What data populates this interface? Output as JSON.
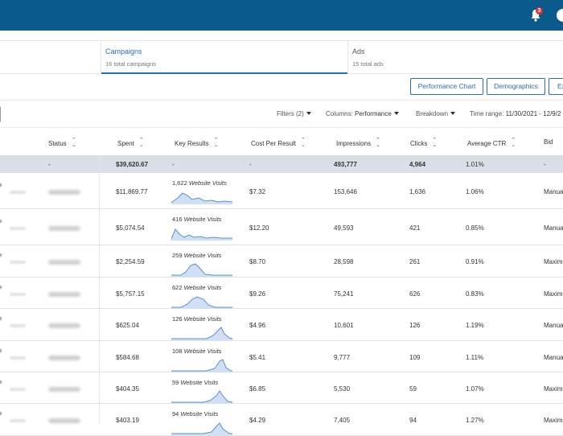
{
  "header": {
    "notification_count": "3",
    "brand_color": "#0b5a8c"
  },
  "tabs": [
    {
      "title": "Campaigns",
      "subtitle": "16 total campaigns"
    },
    {
      "title": "Ads",
      "subtitle": "15 total ads"
    }
  ],
  "actions": {
    "performance_chart": "Performance Chart",
    "demographics": "Demographics",
    "export": "Ex"
  },
  "filters": {
    "filters_label": "Filters (2)",
    "columns_label": "Columns:",
    "columns_value": "Performance",
    "breakdown_label": "Breakdown",
    "time_range_label": "Time range:",
    "time_range_value": "11/30/2021 - 12/9/2"
  },
  "table": {
    "headers": {
      "status": "Status",
      "spent": "Spent",
      "key_results": "Key Results",
      "cost_per_result": "Cost Per Result",
      "impressions": "Impressions",
      "clicks": "Clicks",
      "avg_ctr": "Average CTR",
      "bid": "Bid"
    },
    "summary": {
      "status": "-",
      "spent": "$39,620.67",
      "key_results": "-",
      "cost_per_result": "-",
      "impressions": "493,777",
      "clicks": "4,964",
      "avg_ctr": "1.01%",
      "bid": "-"
    },
    "rows": [
      {
        "spent": "$11,869.77",
        "kr_count": "1,622",
        "kr_label": "Website Visits",
        "cpr": "$7.32",
        "impressions": "153,646",
        "clicks": "1,636",
        "ctr": "1.06%",
        "bid": "Manua"
      },
      {
        "spent": "$5,074.54",
        "kr_count": "416",
        "kr_label": "Website Visits",
        "cpr": "$12.20",
        "impressions": "49,593",
        "clicks": "421",
        "ctr": "0.85%",
        "bid": "Manua"
      },
      {
        "spent": "$2,254.59",
        "kr_count": "259",
        "kr_label": "Website Visits",
        "cpr": "$8.70",
        "impressions": "28,598",
        "clicks": "261",
        "ctr": "0.91%",
        "bid": "Maxim"
      },
      {
        "spent": "$5,757.15",
        "kr_count": "622",
        "kr_label": "Website Visits",
        "cpr": "$9.26",
        "impressions": "75,241",
        "clicks": "626",
        "ctr": "0.83%",
        "bid": "Maxim"
      },
      {
        "spent": "$625.04",
        "kr_count": "126",
        "kr_label": "Website Visits",
        "cpr": "$4.96",
        "impressions": "10,601",
        "clicks": "126",
        "ctr": "1.19%",
        "bid": "Manua"
      },
      {
        "spent": "$584.68",
        "kr_count": "108",
        "kr_label": "Website Visits",
        "cpr": "$5.41",
        "impressions": "9,777",
        "clicks": "109",
        "ctr": "1.11%",
        "bid": "Manua"
      },
      {
        "spent": "$404.35",
        "kr_count": "59",
        "kr_label": "Website Visits",
        "cpr": "$6.85",
        "impressions": "5,530",
        "clicks": "59",
        "ctr": "1.07%",
        "bid": "Maxim"
      },
      {
        "spent": "$403.19",
        "kr_count": "94",
        "kr_label": "Website Visits",
        "cpr": "$4.29",
        "impressions": "7,405",
        "clicks": "94",
        "ctr": "1.27%",
        "bid": "Maxim"
      }
    ]
  }
}
